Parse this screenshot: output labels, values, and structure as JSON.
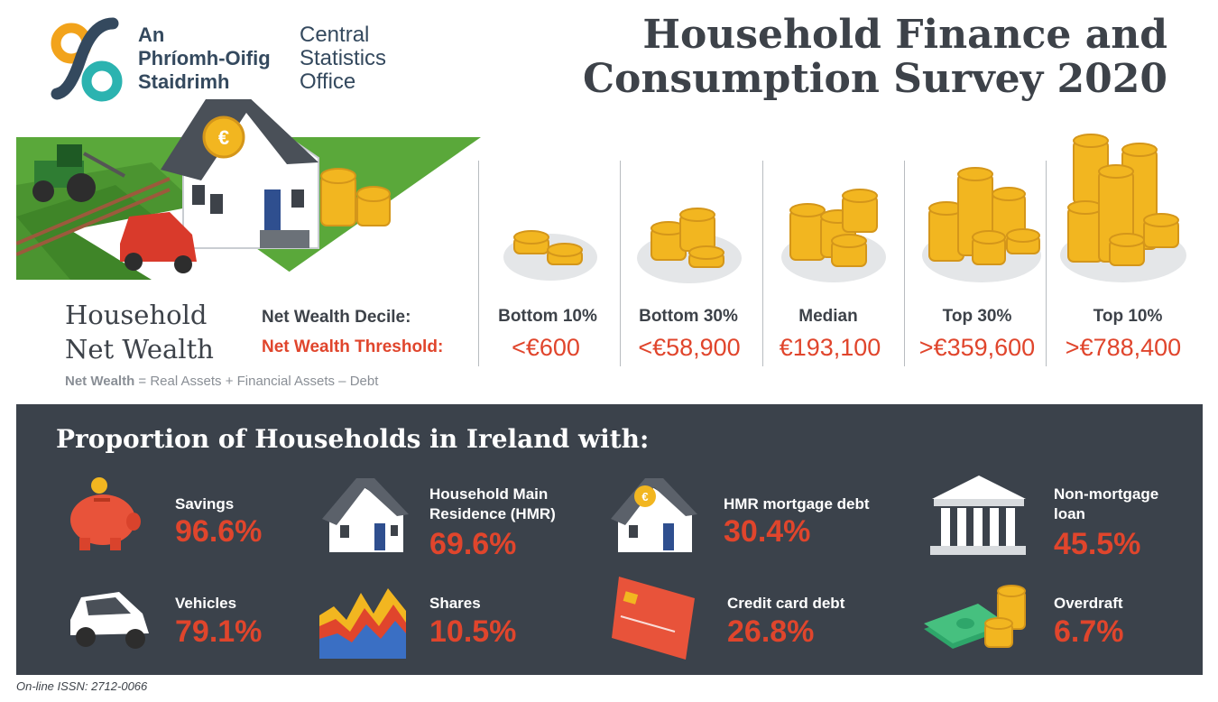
{
  "logo": {
    "irish_lines": [
      "An",
      "Phríomh-Oifig",
      "Staidrimh"
    ],
    "english_lines": [
      "Central",
      "Statistics",
      "Office"
    ]
  },
  "title_lines": [
    "Household Finance and",
    "Consumption Survey 2020"
  ],
  "net_wealth": {
    "heading_lines": [
      "Household",
      "Net Wealth"
    ],
    "decile_label": "Net Wealth Decile:",
    "threshold_label": "Net Wealth Threshold:",
    "formula_term": "Net Wealth",
    "formula_rest": " = Real Assets + Financial Assets – Debt",
    "columns": [
      {
        "label": "Bottom 10%",
        "value": "<€600"
      },
      {
        "label": "Bottom 30%",
        "value": "<€58,900"
      },
      {
        "label": "Median",
        "value": "€193,100"
      },
      {
        "label": "Top 30%",
        "value": ">€359,600"
      },
      {
        "label": "Top 10%",
        "value": ">€788,400"
      }
    ]
  },
  "proportions": {
    "heading": "Proportion of Households in Ireland with:",
    "items": [
      {
        "label_lines": [
          "Savings"
        ],
        "value": "96.6%",
        "icon": "piggy-bank-icon"
      },
      {
        "label_lines": [
          "Household Main",
          "Residence (HMR)"
        ],
        "value": "69.6%",
        "icon": "house-icon"
      },
      {
        "label_lines": [
          "HMR mortgage debt"
        ],
        "value": "30.4%",
        "icon": "house-coin-icon"
      },
      {
        "label_lines": [
          "Non-mortgage",
          "loan"
        ],
        "value": "45.5%",
        "icon": "bank-icon"
      },
      {
        "label_lines": [
          "Vehicles"
        ],
        "value": "79.1%",
        "icon": "car-icon"
      },
      {
        "label_lines": [
          "Shares"
        ],
        "value": "10.5%",
        "icon": "shares-chart-icon"
      },
      {
        "label_lines": [
          "Credit card debt"
        ],
        "value": "26.8%",
        "icon": "credit-card-icon"
      },
      {
        "label_lines": [
          "Overdraft"
        ],
        "value": "6.7%",
        "icon": "cash-coins-icon"
      }
    ]
  },
  "footer": {
    "issn": "On-line ISSN: 2712-0066"
  },
  "colors": {
    "accent": "#e0452c",
    "dark_panel": "#3b424b",
    "coin": "#f2b620",
    "grass": "#5aa83a"
  }
}
